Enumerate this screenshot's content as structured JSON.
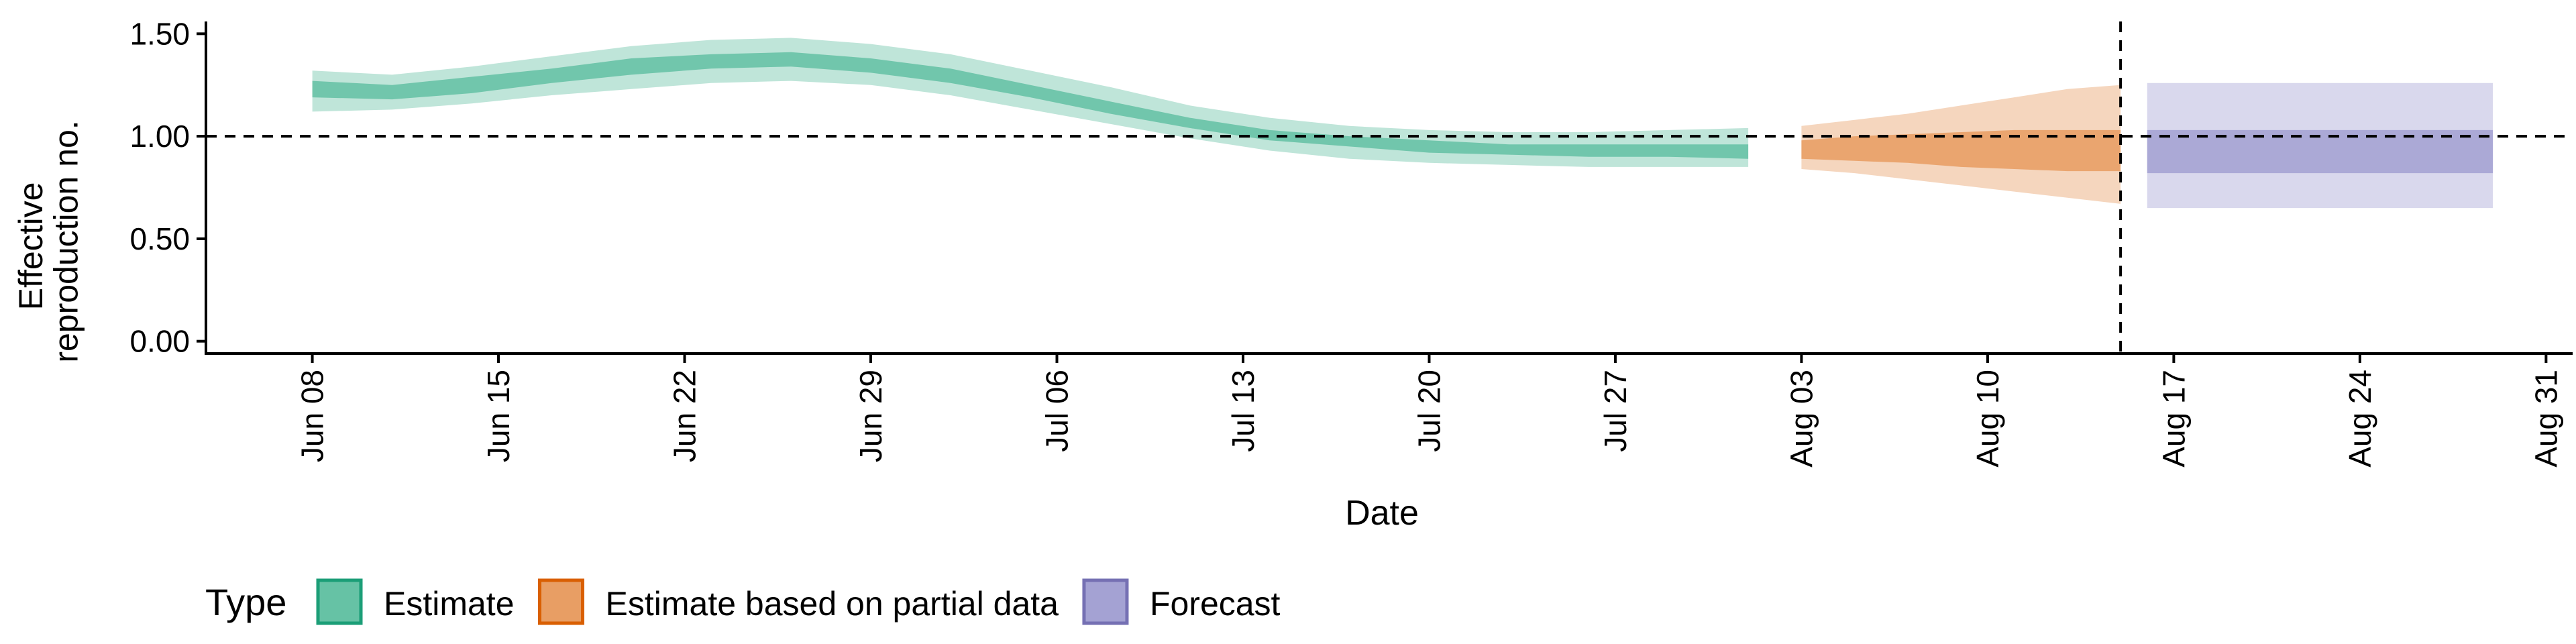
{
  "chart_data": {
    "type": "area",
    "xlabel": "Date",
    "ylabel_lines": [
      "Effective",
      "reproduction no."
    ],
    "x_ticks": [
      "Jun 08",
      "Jun 15",
      "Jun 22",
      "Jun 29",
      "Jul 06",
      "Jul 13",
      "Jul 20",
      "Jul 27",
      "Aug 03",
      "Aug 10",
      "Aug 17",
      "Aug 24",
      "Aug 31"
    ],
    "x_tick_dates": [
      "2020-06-08",
      "2020-06-15",
      "2020-06-22",
      "2020-06-29",
      "2020-07-06",
      "2020-07-13",
      "2020-07-20",
      "2020-07-27",
      "2020-08-03",
      "2020-08-10",
      "2020-08-17",
      "2020-08-24",
      "2020-08-31"
    ],
    "xlim": [
      "2020-06-04",
      "2020-09-01"
    ],
    "y_ticks": [
      "0.00",
      "0.50",
      "1.00",
      "1.50"
    ],
    "y_tick_values": [
      0,
      0.5,
      1.0,
      1.5
    ],
    "ylim": [
      -0.06,
      1.56
    ],
    "reference_line_y": 1.0,
    "reference_line_x": "2020-08-15",
    "grid": false,
    "legend": {
      "title": "Type",
      "position": "bottom-left",
      "items": [
        "Estimate",
        "Estimate based on partial data",
        "Forecast"
      ]
    },
    "series": [
      {
        "name": "Estimate",
        "fill_color": "#66c2a5",
        "border_color": "#1b9e77",
        "dates": [
          "2020-06-08",
          "2020-06-11",
          "2020-06-14",
          "2020-06-17",
          "2020-06-20",
          "2020-06-23",
          "2020-06-26",
          "2020-06-29",
          "2020-07-02",
          "2020-07-05",
          "2020-07-08",
          "2020-07-11",
          "2020-07-14",
          "2020-07-17",
          "2020-07-20",
          "2020-07-23",
          "2020-07-26",
          "2020-07-29",
          "2020-08-01"
        ],
        "lower_90": [
          1.12,
          1.13,
          1.16,
          1.2,
          1.23,
          1.26,
          1.27,
          1.25,
          1.2,
          1.13,
          1.06,
          0.99,
          0.93,
          0.89,
          0.87,
          0.86,
          0.85,
          0.85,
          0.85
        ],
        "lower_50": [
          1.19,
          1.18,
          1.21,
          1.26,
          1.3,
          1.33,
          1.34,
          1.31,
          1.26,
          1.19,
          1.11,
          1.04,
          0.98,
          0.95,
          0.92,
          0.91,
          0.9,
          0.9,
          0.89
        ],
        "upper_50": [
          1.27,
          1.25,
          1.29,
          1.33,
          1.38,
          1.4,
          1.41,
          1.38,
          1.33,
          1.25,
          1.17,
          1.09,
          1.03,
          1.0,
          0.98,
          0.96,
          0.96,
          0.96,
          0.96
        ],
        "upper_90": [
          1.32,
          1.3,
          1.34,
          1.39,
          1.44,
          1.47,
          1.48,
          1.45,
          1.4,
          1.32,
          1.24,
          1.15,
          1.09,
          1.05,
          1.03,
          1.02,
          1.02,
          1.03,
          1.04
        ]
      },
      {
        "name": "Estimate based on partial data",
        "fill_color": "#e89e64",
        "border_color": "#d95f02",
        "dates": [
          "2020-08-03",
          "2020-08-05",
          "2020-08-07",
          "2020-08-09",
          "2020-08-11",
          "2020-08-13",
          "2020-08-15"
        ],
        "lower_90": [
          0.84,
          0.82,
          0.79,
          0.76,
          0.73,
          0.7,
          0.67
        ],
        "lower_50": [
          0.89,
          0.88,
          0.87,
          0.85,
          0.84,
          0.83,
          0.83
        ],
        "upper_50": [
          0.98,
          1.0,
          1.01,
          1.02,
          1.03,
          1.03,
          1.03
        ],
        "upper_90": [
          1.05,
          1.08,
          1.11,
          1.15,
          1.19,
          1.23,
          1.25
        ]
      },
      {
        "name": "Forecast",
        "fill_color": "#a4a2d3",
        "border_color": "#7570b3",
        "dates": [
          "2020-08-16",
          "2020-08-29"
        ],
        "lower_90": [
          0.65,
          0.65
        ],
        "lower_50": [
          0.82,
          0.82
        ],
        "upper_50": [
          1.03,
          1.03
        ],
        "upper_90": [
          1.26,
          1.26
        ]
      }
    ]
  }
}
